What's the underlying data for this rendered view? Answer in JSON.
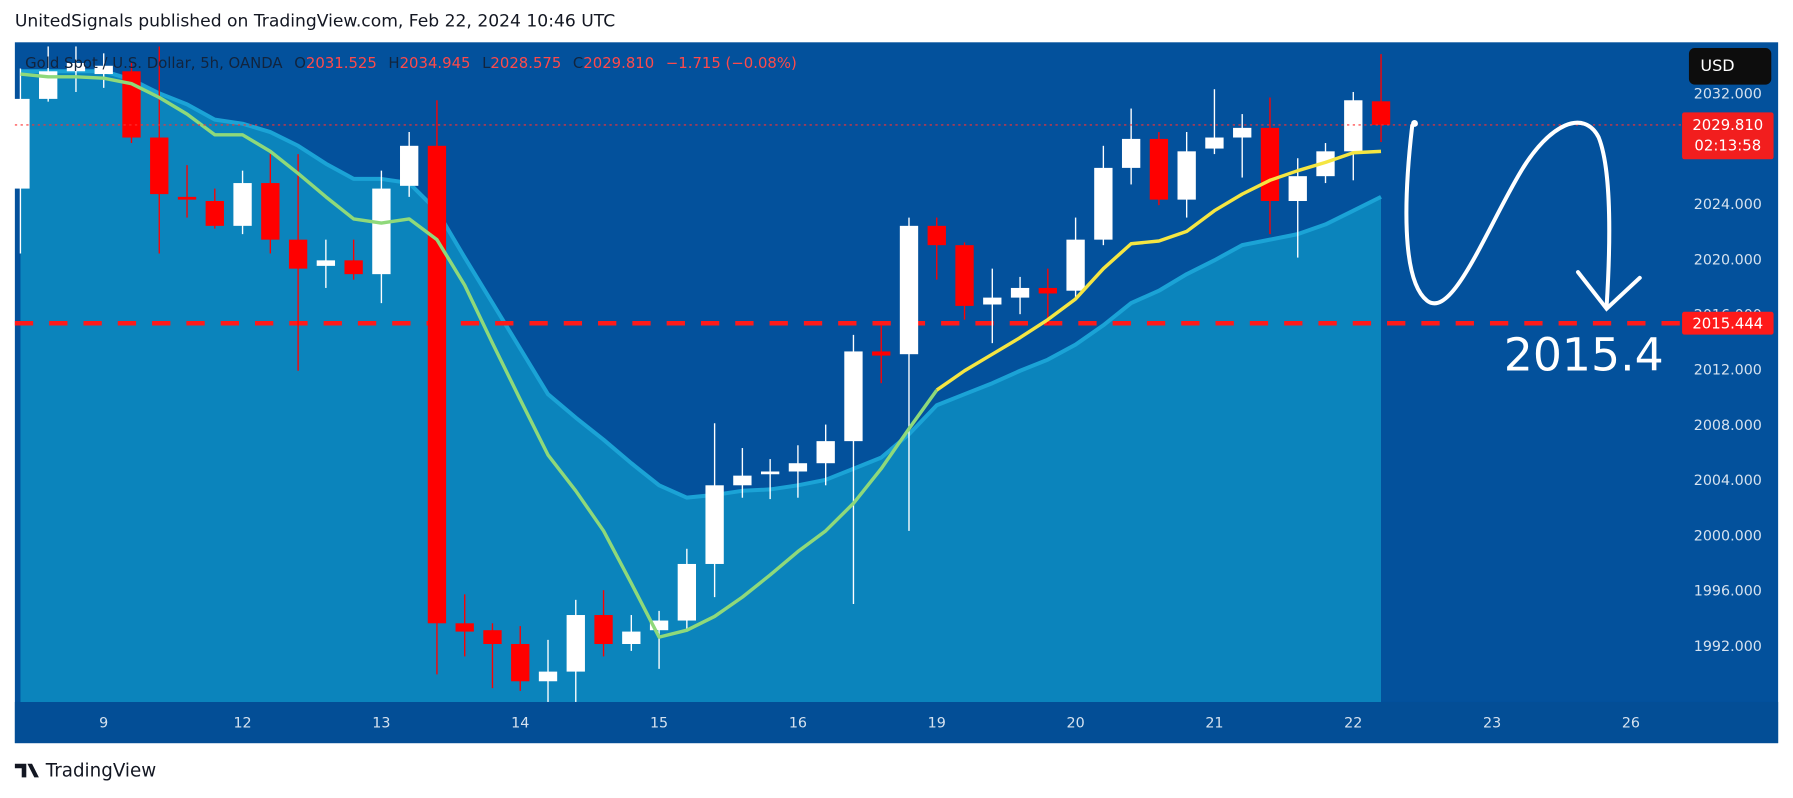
{
  "header": {
    "published": "UnitedSignals published on TradingView.com, Feb 22, 2024 10:46 UTC",
    "brand": "TradingView"
  },
  "legend": {
    "symbol": "Gold Spot / U.S. Dollar, 5h, OANDA",
    "o_label": "O",
    "open": "2031.525",
    "h_label": "H",
    "high": "2034.945",
    "l_label": "L",
    "low": "2028.575",
    "c_label": "C",
    "close": "2029.810",
    "change": "−1.715 (−0.08%)"
  },
  "currency": "USD",
  "chart_data": {
    "type": "candlestick",
    "x": [
      0,
      1,
      2,
      3,
      4,
      5,
      6,
      7,
      8,
      9,
      10,
      11,
      12,
      13,
      14,
      15,
      16,
      17,
      18,
      19,
      20,
      21,
      22,
      23,
      24,
      25,
      26,
      27,
      28,
      29,
      30,
      31,
      32,
      33,
      34,
      35,
      36,
      37,
      38,
      39,
      40,
      41,
      42,
      43,
      44,
      45,
      46,
      47,
      48,
      49
    ],
    "open": [
      2025.2,
      2031.7,
      2033.7,
      2033.5,
      2033.7,
      2028.9,
      2024.6,
      2024.3,
      2022.5,
      2025.6,
      2021.5,
      2019.6,
      2020.0,
      2019.0,
      2025.4,
      2028.3,
      1993.7,
      1993.2,
      1992.2,
      1989.5,
      1990.2,
      1994.3,
      1992.2,
      1993.2,
      1993.9,
      1998.0,
      2003.7,
      2004.5,
      2004.7,
      2005.3,
      2006.9,
      2013.4,
      2013.2,
      2022.5,
      2021.1,
      2016.8,
      2017.3,
      2018.0,
      2017.8,
      2021.5,
      2026.7,
      2028.8,
      2024.4,
      2028.1,
      2028.9,
      2029.6,
      2024.3,
      2026.1,
      2027.9,
      2031.525
    ],
    "high": [
      2033.9,
      2035.5,
      2035.5,
      2035.0,
      2034.3,
      2035.5,
      2026.9,
      2025.2,
      2026.5,
      2027.7,
      2027.7,
      2021.5,
      2021.5,
      2026.5,
      2029.3,
      2031.6,
      1995.8,
      1993.7,
      1993.5,
      1992.5,
      1995.4,
      1996.1,
      1994.3,
      1994.6,
      1999.1,
      2008.2,
      2006.4,
      2005.6,
      2006.6,
      2008.1,
      2014.6,
      2015.3,
      2023.1,
      2023.1,
      2021.3,
      2019.4,
      2018.8,
      2019.4,
      2023.1,
      2028.3,
      2031.0,
      2029.3,
      2029.3,
      2032.4,
      2030.6,
      2031.8,
      2027.4,
      2028.5,
      2032.2,
      2034.945
    ],
    "low": [
      2020.5,
      2031.5,
      2032.2,
      2032.5,
      2028.5,
      2020.5,
      2023.1,
      2022.3,
      2021.9,
      2020.5,
      2012.0,
      2018.0,
      2018.6,
      2016.9,
      2024.6,
      1990.0,
      1991.3,
      1989.0,
      1988.8,
      1988.0,
      1988.0,
      1991.3,
      1991.7,
      1990.4,
      1993.1,
      1995.6,
      2002.8,
      2002.7,
      2002.8,
      2003.7,
      1995.1,
      2011.1,
      2000.4,
      2018.6,
      2015.7,
      2014.0,
      2016.1,
      2015.4,
      2017.1,
      2021.1,
      2025.5,
      2024.0,
      2023.1,
      2027.7,
      2026.0,
      2021.9,
      2020.2,
      2025.6,
      2025.8,
      2028.575
    ],
    "close": [
      2031.7,
      2033.7,
      2034.3,
      2034.1,
      2028.9,
      2024.8,
      2024.4,
      2022.5,
      2025.6,
      2021.5,
      2019.4,
      2020.0,
      2019.0,
      2025.2,
      2028.3,
      1993.7,
      1993.1,
      1992.2,
      1989.5,
      1990.2,
      1994.3,
      1992.2,
      1993.1,
      1993.9,
      1998.0,
      2003.7,
      2004.4,
      2004.7,
      2005.3,
      2006.9,
      2013.4,
      2013.1,
      2022.5,
      2021.1,
      2016.7,
      2017.3,
      2018.0,
      2017.6,
      2021.5,
      2026.7,
      2028.8,
      2024.4,
      2027.9,
      2028.9,
      2029.6,
      2024.3,
      2026.1,
      2027.9,
      2031.6,
      2029.81
    ],
    "up_color": "#ffffff",
    "down_color": "#ff0000",
    "series": [
      {
        "color": "#1ba3d6",
        "fill": "#0b84bc",
        "values": [
          2033.7,
          2033.7,
          2033.7,
          2033.7,
          2033.1,
          2032.1,
          2031.3,
          2030.2,
          2029.9,
          2029.3,
          2028.3,
          2027.0,
          2025.9,
          2025.9,
          2025.6,
          2023.6,
          2020.2,
          2016.9,
          2013.6,
          2010.3,
          2008.6,
          2007.0,
          2005.3,
          2003.7,
          2002.8,
          2003.0,
          2003.3,
          2003.4,
          2003.7,
          2004.1,
          2004.9,
          2005.7,
          2007.4,
          2009.5,
          2010.3,
          2011.1,
          2012.0,
          2012.8,
          2013.9,
          2015.3,
          2016.9,
          2017.8,
          2019.0,
          2020.0,
          2021.1,
          2021.5,
          2021.9,
          2022.6,
          2023.6,
          2024.6
        ]
      },
      {
        "color": "#8fd97a",
        "values": [
          2033.5,
          2033.3,
          2033.3,
          2033.2,
          2032.8,
          2031.8,
          2030.6,
          2029.1,
          2029.1,
          2027.9,
          2026.3,
          2024.6,
          2023.0,
          2022.7,
          2023.0,
          2021.5,
          2018.2,
          2014.0,
          2009.9,
          2005.9,
          2003.3,
          2000.4,
          1996.6,
          1992.7,
          1993.2,
          1994.2,
          1995.6,
          1997.2,
          1998.9,
          2000.4,
          2002.4,
          2004.9,
          2007.8,
          2010.6,
          null,
          null,
          null,
          null,
          null,
          null,
          null,
          null,
          null,
          null,
          null,
          null,
          null,
          null,
          null,
          null
        ]
      },
      {
        "color": "#f5e642",
        "values": [
          null,
          null,
          null,
          null,
          null,
          null,
          null,
          null,
          null,
          null,
          null,
          null,
          null,
          null,
          null,
          null,
          null,
          null,
          null,
          null,
          null,
          null,
          null,
          null,
          null,
          null,
          null,
          null,
          null,
          null,
          null,
          null,
          null,
          2010.6,
          2012.0,
          2013.2,
          2014.4,
          2015.7,
          2017.2,
          2019.4,
          2021.2,
          2021.4,
          2022.1,
          2023.6,
          2024.8,
          2025.8,
          2026.5,
          2027.1,
          2027.8,
          2027.9
        ]
      }
    ],
    "xlim": [
      -0.2,
      59.8
    ],
    "xticks": [
      {
        "value": 3,
        "label": "9"
      },
      {
        "value": 8,
        "label": "12"
      },
      {
        "value": 13,
        "label": "13"
      },
      {
        "value": 18,
        "label": "14"
      },
      {
        "value": 23,
        "label": "15"
      },
      {
        "value": 28,
        "label": "16"
      },
      {
        "value": 33,
        "label": "19"
      },
      {
        "value": 38,
        "label": "20"
      },
      {
        "value": 43,
        "label": "21"
      },
      {
        "value": 48,
        "label": "22"
      },
      {
        "value": 53,
        "label": "23"
      },
      {
        "value": 58,
        "label": "26"
      }
    ],
    "ylim": [
      1988.0,
      2035.8
    ],
    "yticks": [
      {
        "value": 1992,
        "label": "1992.000"
      },
      {
        "value": 1996,
        "label": "1996.000"
      },
      {
        "value": 2000,
        "label": "2000.000"
      },
      {
        "value": 2004,
        "label": "2004.000"
      },
      {
        "value": 2008,
        "label": "2008.000"
      },
      {
        "value": 2012,
        "label": "2012.000"
      },
      {
        "value": 2016,
        "label": "2016.000"
      },
      {
        "value": 2020,
        "label": "2020.000"
      },
      {
        "value": 2024,
        "label": "2024.000"
      },
      {
        "value": 2028,
        "label": "2028.000"
      },
      {
        "value": 2032,
        "label": "2032.000"
      }
    ],
    "level": 2015.444,
    "level_color": "#ff1a1a",
    "last_price": {
      "value": 2029.81,
      "label": "2029.810"
    },
    "countdown": "02:13:58",
    "annotation": "2015.4"
  }
}
